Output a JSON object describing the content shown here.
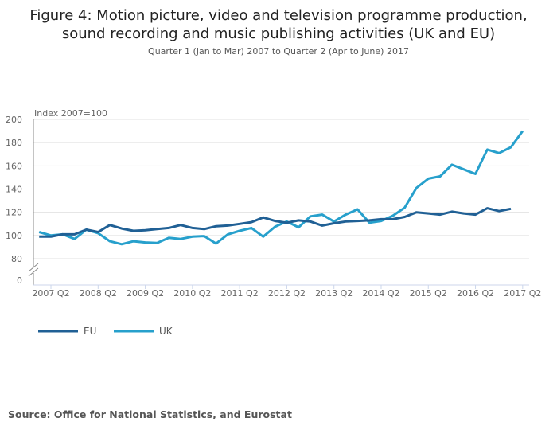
{
  "chart_data": {
    "type": "line",
    "title": "Figure 4: Motion picture, video and television programme production, sound recording and music publishing activities (UK and EU)",
    "subtitle": "Quarter 1 (Jan to Mar) 2007 to Quarter 2 (Apr to June) 2017",
    "ylabel": "Index 2007=100",
    "yticks": [
      0,
      80,
      100,
      120,
      140,
      160,
      180,
      200
    ],
    "ylim": [
      80,
      200
    ],
    "axis_break": true,
    "xtick_labels": [
      "2007 Q2",
      "2008 Q2",
      "2009 Q2",
      "2010 Q2",
      "2011 Q2",
      "2012 Q2",
      "2013 Q2",
      "2014 Q2",
      "2015 Q2",
      "2016 Q2",
      "2017 Q2"
    ],
    "x_start": "2007 Q1",
    "grid": true,
    "legend_placement": "bottom-left",
    "series": [
      {
        "name": "EU",
        "color": "#206095",
        "values": [
          99,
          99,
          101,
          101,
          105,
          103,
          109,
          106,
          104,
          104.5,
          105.5,
          106.5,
          109,
          106.5,
          105.5,
          108,
          108.5,
          110,
          111.5,
          115.5,
          112.5,
          111,
          113,
          112,
          108.5,
          110.5,
          112,
          112.5,
          113,
          114,
          114,
          116,
          120,
          119,
          118,
          120.5,
          119,
          118,
          123.5,
          121,
          123
        ]
      },
      {
        "name": "UK",
        "color": "#27a0cc",
        "values": [
          103,
          100,
          101,
          97,
          105,
          102,
          95,
          92.5,
          95,
          94,
          93.5,
          98,
          97,
          99,
          99.5,
          93,
          101,
          104,
          106.5,
          99,
          107.5,
          112,
          107,
          116.5,
          118,
          112,
          118,
          122.5,
          111,
          112.5,
          117,
          124,
          141,
          149,
          151,
          161,
          157,
          153,
          174,
          171,
          176,
          190
        ]
      }
    ]
  },
  "source": "Source: Office for National Statistics, and Eurostat"
}
